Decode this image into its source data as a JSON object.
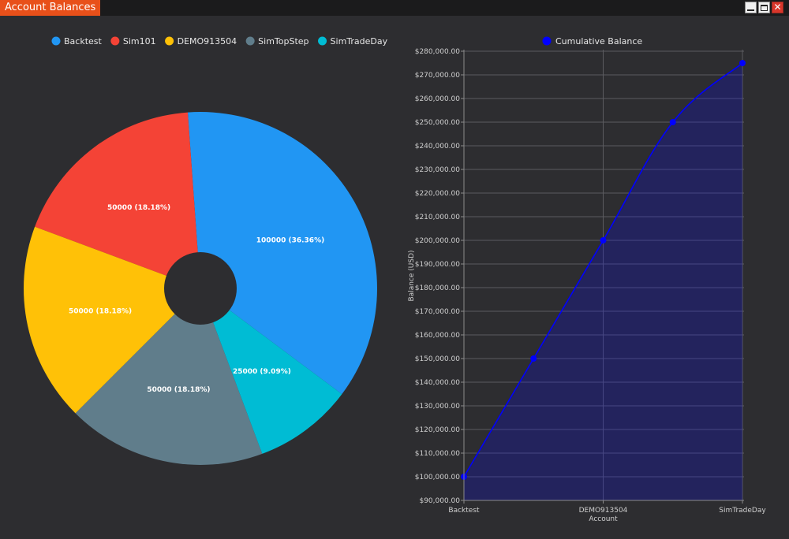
{
  "window": {
    "title": "Account Balances"
  },
  "colors": {
    "background": "#2d2d30",
    "accent": "#e8501a"
  },
  "chart_data": [
    {
      "type": "pie",
      "donut": true,
      "legend_position": "top",
      "slices": [
        {
          "label": "Backtest",
          "value": 100000,
          "data_label": "100000 (36.36%)",
          "color": "#2196f3"
        },
        {
          "label": "Sim101",
          "value": 50000,
          "data_label": "50000 (18.18%)",
          "color": "#f44336"
        },
        {
          "label": "DEMO913504",
          "value": 50000,
          "data_label": "50000 (18.18%)",
          "color": "#ffc107"
        },
        {
          "label": "SimTopStep",
          "value": 50000,
          "data_label": "50000 (18.18%)",
          "color": "#607d8b"
        },
        {
          "label": "SimTradeDay",
          "value": 25000,
          "data_label": "25000 (9.09%)",
          "color": "#00bcd4"
        }
      ]
    },
    {
      "type": "area",
      "categories": [
        "Backtest",
        "Sim101",
        "DEMO913504",
        "SimTopStep",
        "SimTradeDay"
      ],
      "x_tick_labels": [
        "Backtest",
        "",
        "DEMO913504",
        "",
        "SimTradeDay"
      ],
      "series": [
        {
          "name": "Cumulative Balance",
          "values": [
            100000,
            150000,
            200000,
            250000,
            275000
          ],
          "color": "#0000ff"
        }
      ],
      "xlabel": "Account",
      "ylabel": "Balance (USD)",
      "ylim": [
        90000,
        280000
      ],
      "y_tick_step": 10000,
      "y_tick_format": "currency",
      "grid": true,
      "legend_position": "top"
    }
  ]
}
